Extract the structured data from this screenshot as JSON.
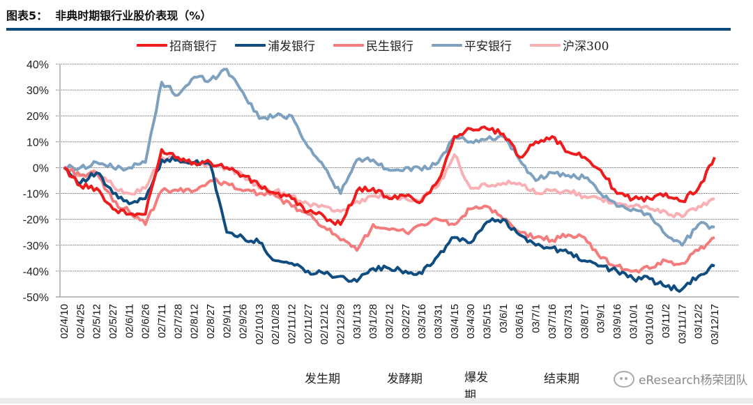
{
  "header": {
    "figure_label": "图表5：",
    "title": "非典时期银行业股价表现（%）"
  },
  "phases": [
    "发生期",
    "发酵期",
    "爆发期",
    "结束期"
  ],
  "watermark": "eResearch杨荣团队",
  "chart_data": {
    "type": "line",
    "title": "非典时期银行业股价表现（%）",
    "xlabel": "",
    "ylabel": "",
    "ylim": [
      -50,
      40
    ],
    "yticks": [
      40,
      30,
      20,
      10,
      0,
      -10,
      -20,
      -30,
      -40,
      -50
    ],
    "ytick_labels": [
      "40%",
      "30%",
      "20%",
      "10%",
      "0%",
      "-10%",
      "-20%",
      "-30%",
      "-40%",
      "-50%"
    ],
    "grid": true,
    "legend_position": "top",
    "categories": [
      "02/4/10",
      "02/4/25",
      "02/5/12",
      "02/5/27",
      "02/6/11",
      "02/6/26",
      "02/7/11",
      "02/7/28",
      "02/8/12",
      "02/8/27",
      "02/9/11",
      "02/9/26",
      "02/10/13",
      "02/10/28",
      "02/11/12",
      "02/11/27",
      "02/12/12",
      "02/12/29",
      "03/1/13",
      "03/1/28",
      "03/2/12",
      "03/2/27",
      "03/3/16",
      "03/3/31",
      "03/4/15",
      "03/4/30",
      "03/5/15",
      "03/6/1",
      "03/6/16",
      "03/7/1",
      "03/7/16",
      "03/7/31",
      "03/8/17",
      "03/9/1",
      "03/9/16",
      "03/10/1",
      "03/10/16",
      "03/11/2",
      "03/11/17",
      "03/12/2",
      "03/12/17"
    ],
    "series": [
      {
        "name": "招商银行",
        "color": "#ee1c1c",
        "values": [
          0,
          -7,
          -8,
          -16,
          -18,
          -18,
          7,
          4,
          2,
          2,
          0,
          -3,
          -7,
          -10,
          -12,
          -17,
          -19,
          -22,
          -9,
          -8,
          -12,
          -11,
          -13,
          -5,
          12,
          15,
          15,
          13,
          4,
          10,
          12,
          6,
          4,
          -1,
          -10,
          -12,
          -12,
          -10,
          -13,
          -8,
          4
        ]
      },
      {
        "name": "浦发银行",
        "color": "#0f4c7f",
        "values": [
          0,
          -6,
          -2,
          -10,
          -14,
          -12,
          3,
          3,
          2,
          1,
          -25,
          -27,
          -29,
          -36,
          -37,
          -40,
          -41,
          -42,
          -44,
          -39,
          -39,
          -40,
          -41,
          -34,
          -27,
          -29,
          -21,
          -20,
          -26,
          -30,
          -31,
          -33,
          -36,
          -38,
          -40,
          -43,
          -43,
          -46,
          -47,
          -42,
          -38
        ]
      },
      {
        "name": "民生银行",
        "color": "#f47c7c",
        "values": [
          0,
          -3,
          -2,
          -13,
          -17,
          -22,
          -9,
          -9,
          -9,
          -5,
          -6,
          -9,
          -10,
          -11,
          -15,
          -18,
          -23,
          -28,
          -32,
          -22,
          -24,
          -25,
          -22,
          -20,
          -22,
          -16,
          -15,
          -20,
          -25,
          -27,
          -28,
          -26,
          -27,
          -35,
          -38,
          -40,
          -39,
          -36,
          -37,
          -32,
          -27
        ]
      },
      {
        "name": "平安银行",
        "color": "#7ea1bf",
        "values": [
          0,
          0,
          2,
          0,
          0,
          2,
          33,
          28,
          35,
          34,
          38,
          29,
          19,
          20,
          20,
          8,
          0,
          -10,
          3,
          3,
          -1,
          0,
          -1,
          2,
          12,
          10,
          11,
          12,
          3,
          -5,
          -2,
          -3,
          -4,
          -10,
          -15,
          -16,
          -18,
          -26,
          -30,
          -22,
          -23
        ]
      },
      {
        "name": "沪深300",
        "color": "#f9b0b4",
        "values": [
          0,
          -3,
          -2,
          -7,
          -10,
          -8,
          4,
          3,
          2,
          1,
          0,
          -3,
          -8,
          -9,
          -11,
          -14,
          -15,
          -17,
          -13,
          -11,
          -11,
          -12,
          -12,
          -7,
          5,
          -8,
          -7,
          -6,
          -6,
          -10,
          -9,
          -9,
          -11,
          -12,
          -14,
          -15,
          -16,
          -17,
          -19,
          -15,
          -12
        ]
      }
    ]
  }
}
